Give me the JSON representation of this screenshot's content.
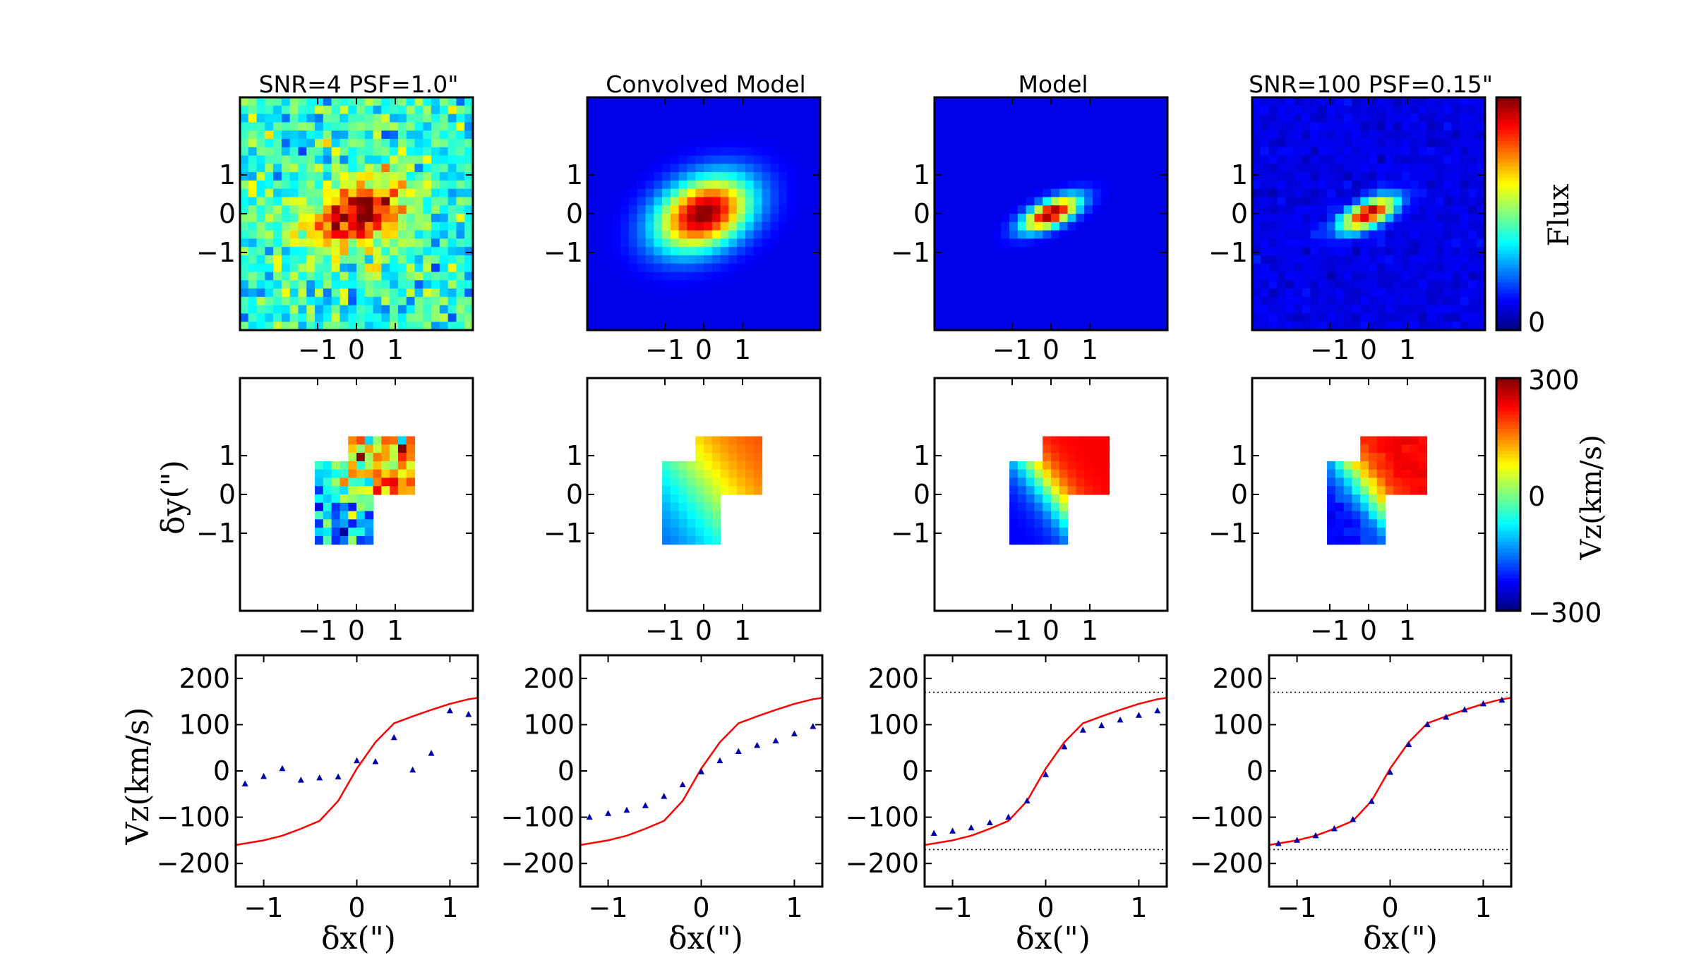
{
  "figure": {
    "panel_titles": [
      "SNR=4 PSF=1.0\"",
      "Convolved Model",
      "Model",
      "SNR=100 PSF=0.15\""
    ],
    "map_tick_labels": [
      "−1",
      "0",
      "1"
    ],
    "row2_ylabel": "δy(\")",
    "row3_ylabel": "Vz(km/s)",
    "row3_xlabel": "δx(\")",
    "flux_colorbar": {
      "label": "Flux",
      "tick": "0"
    },
    "velocity_colorbar": {
      "label": "Vz(km/s)",
      "ticks": [
        "300",
        "0",
        "−300"
      ]
    }
  },
  "chart_data": [
    {
      "type": "heatmap",
      "title": "SNR=4 PSF=1.0\"",
      "quantity": "flux",
      "xlim": [
        -3,
        3
      ],
      "ylim": [
        -3,
        3
      ],
      "noise": "high",
      "colormap": "jet"
    },
    {
      "type": "heatmap",
      "title": "Convolved Model",
      "quantity": "flux",
      "xlim": [
        -3,
        3
      ],
      "ylim": [
        -3,
        3
      ],
      "noise": "none",
      "colormap": "jet"
    },
    {
      "type": "heatmap",
      "title": "Model",
      "quantity": "flux",
      "xlim": [
        -3,
        3
      ],
      "ylim": [
        -3,
        3
      ],
      "noise": "none",
      "colormap": "jet"
    },
    {
      "type": "heatmap",
      "title": "SNR=100 PSF=0.15\"",
      "quantity": "flux",
      "xlim": [
        -3,
        3
      ],
      "ylim": [
        -3,
        3
      ],
      "noise": "low",
      "colormap": "jet"
    },
    {
      "type": "heatmap",
      "quantity": "velocity",
      "ylabel": "δy(\")",
      "clim": [
        -300,
        300
      ],
      "noise": "high"
    },
    {
      "type": "heatmap",
      "quantity": "velocity",
      "clim": [
        -300,
        300
      ],
      "noise": "none"
    },
    {
      "type": "heatmap",
      "quantity": "velocity",
      "clim": [
        -300,
        300
      ],
      "noise": "none"
    },
    {
      "type": "heatmap",
      "quantity": "velocity",
      "clim": [
        -300,
        300
      ],
      "noise": "low"
    },
    {
      "type": "line",
      "xlabel": "δx(\")",
      "ylabel": "Vz(km/s)",
      "xlim": [
        -1.3,
        1.3
      ],
      "ylim": [
        -250,
        250
      ],
      "series": [
        {
          "kind": "line",
          "color": "#ff0000",
          "x": [
            -1.3,
            -1.0,
            -0.8,
            -0.6,
            -0.4,
            -0.2,
            0.0,
            0.2,
            0.4,
            0.6,
            0.8,
            1.0,
            1.2,
            1.3
          ],
          "y": [
            -160,
            -150,
            -140,
            -125,
            -108,
            -65,
            5,
            62,
            103,
            118,
            132,
            145,
            155,
            158
          ]
        },
        {
          "kind": "scatter",
          "marker": "triangle",
          "color": "#0000aa",
          "x": [
            -1.2,
            -1.0,
            -0.8,
            -0.6,
            -0.4,
            -0.2,
            0.0,
            0.2,
            0.4,
            0.6,
            0.8,
            1.0,
            1.2
          ],
          "y": [
            -28,
            -12,
            5,
            -20,
            -15,
            -13,
            22,
            20,
            72,
            2,
            38,
            130,
            122
          ]
        }
      ]
    },
    {
      "type": "line",
      "xlabel": "δx(\")",
      "xlim": [
        -1.3,
        1.3
      ],
      "ylim": [
        -250,
        250
      ],
      "series": [
        {
          "kind": "line",
          "color": "#ff0000",
          "x": [
            -1.3,
            -1.0,
            -0.8,
            -0.6,
            -0.4,
            -0.2,
            0.0,
            0.2,
            0.4,
            0.6,
            0.8,
            1.0,
            1.2,
            1.3
          ],
          "y": [
            -160,
            -150,
            -140,
            -125,
            -108,
            -65,
            5,
            62,
            103,
            118,
            132,
            145,
            155,
            158
          ]
        },
        {
          "kind": "scatter",
          "marker": "triangle",
          "color": "#0000aa",
          "x": [
            -1.2,
            -1.0,
            -0.8,
            -0.6,
            -0.4,
            -0.2,
            0.0,
            0.2,
            0.4,
            0.6,
            0.8,
            1.0,
            1.2
          ],
          "y": [
            -100,
            -92,
            -85,
            -75,
            -55,
            -30,
            -2,
            22,
            42,
            55,
            65,
            80,
            96
          ]
        }
      ]
    },
    {
      "type": "line",
      "xlabel": "δx(\")",
      "xlim": [
        -1.3,
        1.3
      ],
      "ylim": [
        -250,
        250
      ],
      "hlines": [
        170,
        -170
      ],
      "series": [
        {
          "kind": "line",
          "color": "#ff0000",
          "x": [
            -1.3,
            -1.0,
            -0.8,
            -0.6,
            -0.4,
            -0.2,
            0.0,
            0.2,
            0.4,
            0.6,
            0.8,
            1.0,
            1.2,
            1.3
          ],
          "y": [
            -160,
            -150,
            -140,
            -125,
            -108,
            -65,
            5,
            62,
            103,
            118,
            132,
            145,
            155,
            158
          ]
        },
        {
          "kind": "scatter",
          "marker": "triangle",
          "color": "#0000aa",
          "x": [
            -1.2,
            -1.0,
            -0.8,
            -0.6,
            -0.4,
            -0.2,
            0.0,
            0.2,
            0.4,
            0.6,
            0.8,
            1.0,
            1.2
          ],
          "y": [
            -135,
            -130,
            -123,
            -112,
            -100,
            -65,
            -8,
            52,
            88,
            98,
            110,
            120,
            130
          ]
        }
      ]
    },
    {
      "type": "line",
      "xlabel": "δx(\")",
      "xlim": [
        -1.3,
        1.3
      ],
      "ylim": [
        -250,
        250
      ],
      "hlines": [
        170,
        -170
      ],
      "series": [
        {
          "kind": "line",
          "color": "#ff0000",
          "x": [
            -1.3,
            -1.0,
            -0.8,
            -0.6,
            -0.4,
            -0.2,
            0.0,
            0.2,
            0.4,
            0.6,
            0.8,
            1.0,
            1.2,
            1.3
          ],
          "y": [
            -160,
            -150,
            -140,
            -125,
            -108,
            -65,
            5,
            62,
            103,
            118,
            132,
            145,
            155,
            158
          ]
        },
        {
          "kind": "scatter",
          "marker": "triangle",
          "color": "#0000aa",
          "x": [
            -1.2,
            -1.0,
            -0.8,
            -0.6,
            -0.4,
            -0.2,
            0.0,
            0.2,
            0.4,
            0.6,
            0.8,
            1.0,
            1.2
          ],
          "y": [
            -157,
            -150,
            -140,
            -125,
            -105,
            -66,
            -3,
            57,
            100,
            116,
            132,
            145,
            153
          ]
        }
      ]
    }
  ]
}
